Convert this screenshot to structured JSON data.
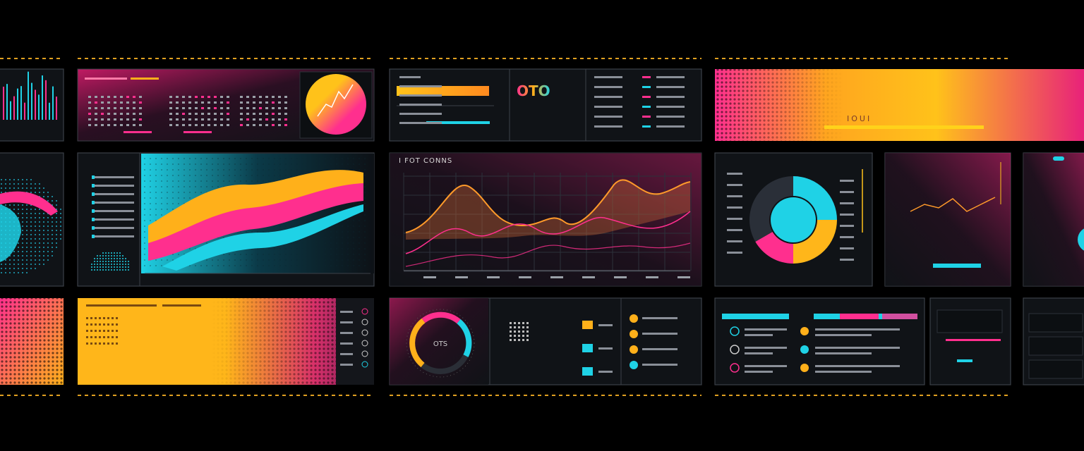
{
  "panels": {
    "header_badge": "OTO",
    "chart_title": "I FOT CONNS",
    "banner_label": "IOUI",
    "gauge_label": "OTS"
  }
}
